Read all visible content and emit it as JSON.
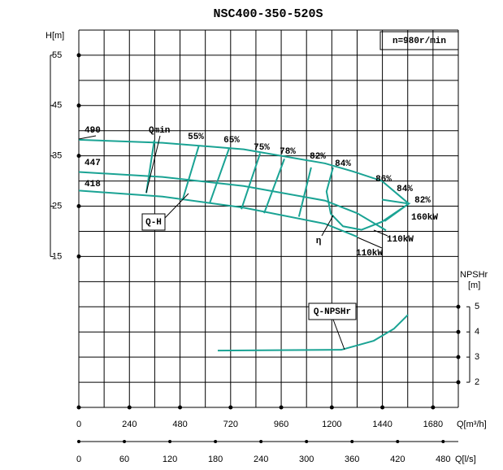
{
  "chart_data": {
    "type": "line",
    "title": "NSC400-350-520S",
    "speed_label": "n=980r/min",
    "x_label": "Q[m³/h]",
    "x2_label": "Q[l/s]",
    "y_label": "H[m]",
    "y2_label": "NPSHr",
    "y2_unit": "[m]",
    "xlim": [
      0,
      1800
    ],
    "xticks": [
      0,
      240,
      480,
      720,
      960,
      1200,
      1440,
      1680
    ],
    "x_grid": [
      0,
      120,
      240,
      360,
      480,
      600,
      720,
      840,
      960,
      1080,
      1200,
      1320,
      1440,
      1560,
      1680,
      1800
    ],
    "x2lim": [
      0,
      500
    ],
    "x2ticks": [
      0,
      60,
      120,
      180,
      240,
      300,
      360,
      420,
      480
    ],
    "ylim": [
      -15,
      60
    ],
    "yticks": [
      15,
      25,
      35,
      45,
      55
    ],
    "y_grid": [
      -15,
      -10,
      -5,
      0,
      5,
      10,
      15,
      20,
      25,
      30,
      35,
      40,
      45,
      50,
      55,
      60
    ],
    "y2lim": [
      1,
      16
    ],
    "y2ticks": [
      2,
      3,
      4,
      5
    ],
    "grid": true,
    "color": "#1aa394",
    "series": [
      {
        "name": "490",
        "x": [
          0,
          397,
          782,
          1168,
          1300,
          1438,
          1565
        ],
        "values": [
          38.2,
          37.6,
          36.3,
          33.5,
          31.9,
          30.0,
          25.5
        ]
      },
      {
        "name": "447",
        "x": [
          0,
          397,
          782,
          1168,
          1320,
          1457
        ],
        "values": [
          31.8,
          30.8,
          29.0,
          26.1,
          23.6,
          20.2
        ]
      },
      {
        "name": "418",
        "x": [
          0,
          397,
          782,
          1168,
          1322
        ],
        "values": [
          28.1,
          26.9,
          24.7,
          21.5,
          18.9
        ]
      },
      {
        "name": "Q-NPSHr",
        "axis": "y2",
        "x": [
          659,
          1245,
          1399,
          1495,
          1561
        ],
        "values": [
          3.26,
          3.29,
          3.65,
          4.13,
          4.68
        ]
      }
    ],
    "qh_label": "Q-H",
    "qmin": {
      "name": "Qmin",
      "x": [
        358,
        320
      ],
      "values": [
        38.1,
        27.6
      ]
    },
    "efficiency_lines": [
      {
        "name": "55%",
        "x": [
          570,
          494
        ],
        "values": [
          37.1,
          26.5
        ]
      },
      {
        "name": "65%",
        "x": [
          713,
          620
        ],
        "values": [
          36.5,
          25.5
        ]
      },
      {
        "name": "75%",
        "x": [
          860,
          771
        ],
        "values": [
          35.5,
          24.4
        ]
      },
      {
        "name": "78%",
        "x": [
          975,
          879
        ],
        "values": [
          34.4,
          23.6
        ]
      },
      {
        "name": "82%",
        "x": [
          1102,
          1044
        ],
        "values": [
          32.7,
          22.9
        ]
      },
      {
        "name": "84%",
        "x": [
          1206,
          1175,
          1195,
          1253,
          1341,
          1438,
          1565
        ],
        "values": [
          32.7,
          27.9,
          23.5,
          21.0,
          20.3,
          21.9,
          25.5
        ]
      },
      {
        "name": "86%",
        "x": [
          1438,
          1565,
          1450
        ],
        "values": [
          26.3,
          25.5,
          22.0
        ]
      }
    ],
    "end_labels": [
      "84%",
      "82%"
    ],
    "eta_label": "η",
    "power_labels": [
      "160kW",
      "110kW",
      "110kW"
    ]
  }
}
